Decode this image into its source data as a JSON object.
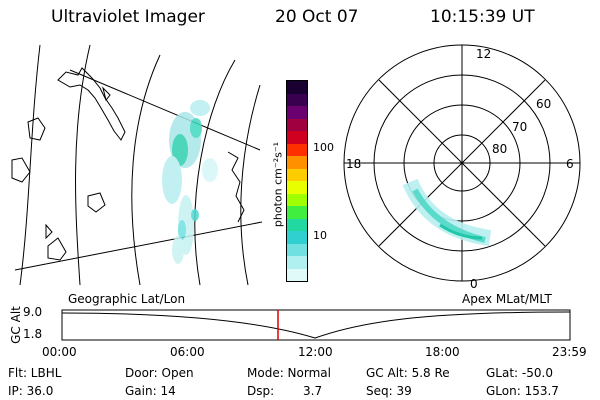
{
  "header": {
    "title": "Ultraviolet Imager",
    "date": "20 Oct 07",
    "time": "10:15:39 UT"
  },
  "colorbar": {
    "unit_label": "photon cm⁻²s⁻¹",
    "ticks": [
      "100",
      "10"
    ],
    "colors": [
      "#1a0030",
      "#3a0050",
      "#6a0070",
      "#a00040",
      "#d00020",
      "#ff3000",
      "#ff9000",
      "#ffcc00",
      "#e8ff00",
      "#a0ff00",
      "#40ee40",
      "#20d8a0",
      "#30d0d0",
      "#70e0e0",
      "#b0f0f0",
      "#e0fafa"
    ]
  },
  "polar": {
    "hour_labels": {
      "top": "12",
      "left": "18",
      "right": "6",
      "bottom": "0"
    },
    "lat_labels": [
      "60",
      "70",
      "80"
    ]
  },
  "map_label": "Geographic Lat/Lon",
  "polar_label": "Apex MLat/MLT",
  "altitude_plot": {
    "y_label": "GC Alt",
    "y_ticks": [
      "9.0",
      "1.8"
    ],
    "x_ticks": [
      "00:00",
      "06:00",
      "12:00",
      "18:00",
      "23:59"
    ],
    "current_marker_time": "10:15:39"
  },
  "info": {
    "flt": "Flt: LBHL",
    "ip": "IP: 36.0",
    "door": "Door: Open",
    "gain": "Gain: 14",
    "mode": "Mode: Normal",
    "dsp_label": "Dsp:",
    "dsp_value": "3.7",
    "gc_alt": "GC Alt: 5.8 Re",
    "seq": "Seq: 39",
    "glat": "GLat: -50.0",
    "glon": "GLon: 153.7"
  },
  "accent_colors": {
    "marker": "#e00000"
  }
}
